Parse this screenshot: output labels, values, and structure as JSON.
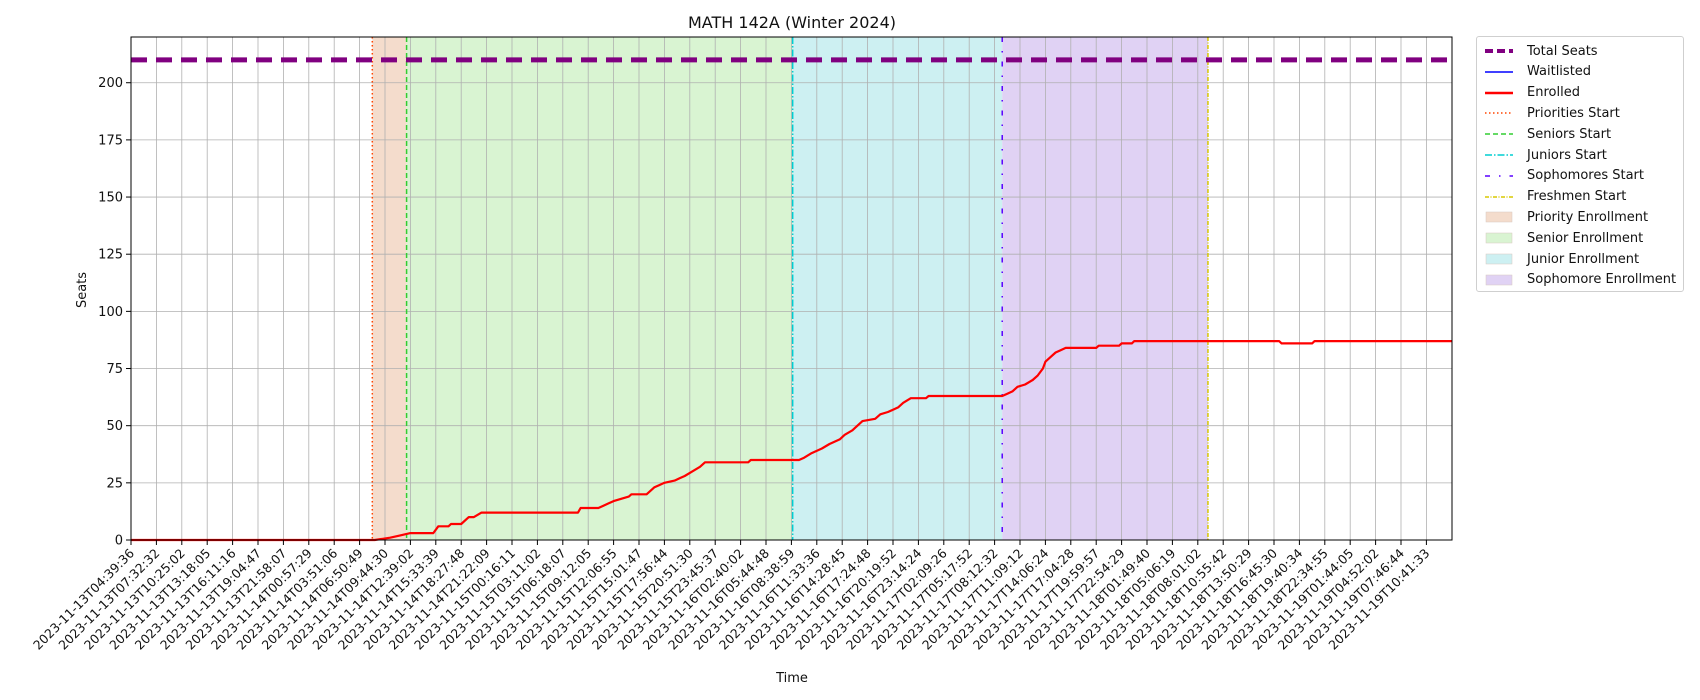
{
  "chart_data": {
    "type": "line",
    "title": "MATH 142A (Winter 2024)",
    "xlabel": "Time",
    "ylabel": "Seats",
    "ylim": [
      0,
      220
    ],
    "yticks": [
      0,
      25,
      50,
      75,
      100,
      125,
      150,
      175,
      200
    ],
    "grid": true,
    "legend_position": "outside-right-top",
    "x_tick_labels": [
      "2023-11-13T04:39:36",
      "2023-11-13T07:32:32",
      "2023-11-13T10:25:02",
      "2023-11-13T13:18:05",
      "2023-11-13T16:11:16",
      "2023-11-13T19:04:47",
      "2023-11-13T21:58:07",
      "2023-11-14T00:57:29",
      "2023-11-14T03:51:06",
      "2023-11-14T06:50:49",
      "2023-11-14T09:44:30",
      "2023-11-14T12:39:02",
      "2023-11-14T15:33:39",
      "2023-11-14T18:27:48",
      "2023-11-14T21:22:09",
      "2023-11-15T00:16:11",
      "2023-11-15T03:11:02",
      "2023-11-15T06:18:07",
      "2023-11-15T09:12:05",
      "2023-11-15T12:06:55",
      "2023-11-15T15:01:47",
      "2023-11-15T17:56:44",
      "2023-11-15T20:51:30",
      "2023-11-15T23:45:37",
      "2023-11-16T02:40:02",
      "2023-11-16T05:44:48",
      "2023-11-16T08:38:59",
      "2023-11-16T11:33:36",
      "2023-11-16T14:28:45",
      "2023-11-16T17:24:48",
      "2023-11-16T20:19:52",
      "2023-11-16T23:14:24",
      "2023-11-17T02:09:26",
      "2023-11-17T05:17:52",
      "2023-11-17T08:12:32",
      "2023-11-17T11:09:12",
      "2023-11-17T14:06:24",
      "2023-11-17T17:04:28",
      "2023-11-17T19:59:57",
      "2023-11-17T22:54:29",
      "2023-11-18T01:49:40",
      "2023-11-18T05:06:19",
      "2023-11-18T08:01:02",
      "2023-11-18T10:55:42",
      "2023-11-18T13:50:29",
      "2023-11-18T16:45:30",
      "2023-11-18T19:40:34",
      "2023-11-18T22:34:55",
      "2023-11-19T01:44:05",
      "2023-11-19T04:52:02",
      "2023-11-19T07:46:44",
      "2023-11-19T10:41:33"
    ],
    "total_seats": 210,
    "series": [
      {
        "name": "Total Seats",
        "color": "#800080",
        "style": "dashed-thick",
        "y": 210
      },
      {
        "name": "Waitlisted",
        "color": "#0000ff",
        "style": "solid",
        "values": []
      },
      {
        "name": "Enrolled",
        "color": "#ff0000",
        "style": "solid",
        "points": [
          [
            0,
            0
          ],
          [
            9.6,
            0
          ],
          [
            10.2,
            1
          ],
          [
            10.6,
            2
          ],
          [
            11.0,
            3
          ],
          [
            11.9,
            3
          ],
          [
            12.1,
            6
          ],
          [
            12.5,
            6
          ],
          [
            12.6,
            7
          ],
          [
            13.0,
            7
          ],
          [
            13.3,
            10
          ],
          [
            13.5,
            10
          ],
          [
            13.8,
            12
          ],
          [
            14.2,
            12
          ],
          [
            17.6,
            12
          ],
          [
            17.7,
            14
          ],
          [
            18.4,
            14
          ],
          [
            18.6,
            15
          ],
          [
            18.8,
            16
          ],
          [
            19.0,
            17
          ],
          [
            19.3,
            18
          ],
          [
            19.6,
            19
          ],
          [
            19.7,
            20
          ],
          [
            20.3,
            20
          ],
          [
            20.6,
            23
          ],
          [
            20.8,
            24
          ],
          [
            21.0,
            25
          ],
          [
            21.4,
            26
          ],
          [
            21.6,
            27
          ],
          [
            21.8,
            28
          ],
          [
            22.1,
            30
          ],
          [
            22.4,
            32
          ],
          [
            22.6,
            34
          ],
          [
            24.3,
            34
          ],
          [
            24.4,
            35
          ],
          [
            26.3,
            35
          ],
          [
            26.5,
            36
          ],
          [
            26.8,
            38
          ],
          [
            27.2,
            40
          ],
          [
            27.5,
            42
          ],
          [
            27.9,
            44
          ],
          [
            28.1,
            46
          ],
          [
            28.4,
            48
          ],
          [
            28.6,
            50
          ],
          [
            28.8,
            52
          ],
          [
            29.3,
            53
          ],
          [
            29.5,
            55
          ],
          [
            29.8,
            56
          ],
          [
            30.0,
            57
          ],
          [
            30.2,
            58
          ],
          [
            30.4,
            60
          ],
          [
            30.7,
            62
          ],
          [
            31.3,
            62
          ],
          [
            31.4,
            63
          ],
          [
            34.3,
            63
          ],
          [
            34.5,
            64
          ],
          [
            34.7,
            65
          ],
          [
            34.9,
            67
          ],
          [
            35.2,
            68
          ],
          [
            35.5,
            70
          ],
          [
            35.7,
            72
          ],
          [
            35.9,
            75
          ],
          [
            36.0,
            78
          ],
          [
            36.2,
            80
          ],
          [
            36.4,
            82
          ],
          [
            36.6,
            83
          ],
          [
            36.8,
            84
          ],
          [
            38.0,
            84
          ],
          [
            38.1,
            85
          ],
          [
            38.9,
            85
          ],
          [
            39.0,
            86
          ],
          [
            39.4,
            86
          ],
          [
            39.5,
            87
          ],
          [
            45.2,
            87
          ],
          [
            45.3,
            86
          ],
          [
            46.5,
            86
          ],
          [
            46.6,
            87
          ],
          [
            52.0,
            87
          ]
        ]
      }
    ],
    "phases": [
      {
        "name": "Priority Enrollment",
        "start_label": "Priorities Start",
        "start": 9.5,
        "end": 10.85,
        "fill": "#f4dccc",
        "line_color": "#ff4500",
        "line_style": "dotted"
      },
      {
        "name": "Senior Enrollment",
        "start_label": "Seniors Start",
        "start": 10.85,
        "end": 26.05,
        "fill": "#d9f4d2",
        "line_color": "#32cd32",
        "line_style": "dashed"
      },
      {
        "name": "Junior Enrollment",
        "start_label": "Juniors Start",
        "start": 26.05,
        "end": 34.3,
        "fill": "#cdf0f2",
        "line_color": "#00ced1",
        "line_style": "dashdot"
      },
      {
        "name": "Sophomore Enrollment",
        "start_label": "Sophomores Start",
        "start": 34.3,
        "end": 42.4,
        "fill": "#e0d2f4",
        "line_color": "#5a00ff",
        "line_style": "dashdotsparse"
      },
      {
        "name": null,
        "start_label": "Freshmen Start",
        "start": 42.4,
        "end": null,
        "fill": null,
        "line_color": "#d9c800",
        "line_style": "dashdotdense"
      }
    ]
  },
  "legend": {
    "items": [
      {
        "label": "Total Seats",
        "kind": "line",
        "color": "#800080",
        "dash": "8,4",
        "width": 4
      },
      {
        "label": "Waitlisted",
        "kind": "line",
        "color": "#0000ff",
        "dash": "",
        "width": 1.5
      },
      {
        "label": "Enrolled",
        "kind": "line",
        "color": "#ff0000",
        "dash": "",
        "width": 2.5
      },
      {
        "label": "Priorities Start",
        "kind": "line",
        "color": "#ff4500",
        "dash": "1.5,2.5",
        "width": 1.5
      },
      {
        "label": "Seniors Start",
        "kind": "line",
        "color": "#32cd32",
        "dash": "5,3",
        "width": 1.5
      },
      {
        "label": "Juniors Start",
        "kind": "line",
        "color": "#00ced1",
        "dash": "7,2,1.5,2",
        "width": 1.5
      },
      {
        "label": "Sophomores Start",
        "kind": "line",
        "color": "#5a00ff",
        "dash": "5,9,1.5,9",
        "width": 1.5
      },
      {
        "label": "Freshmen Start",
        "kind": "line",
        "color": "#d9c800",
        "dash": "4,1.5,1,1.5",
        "width": 1.5
      },
      {
        "label": "Priority Enrollment",
        "kind": "patch",
        "color": "#f4dccc"
      },
      {
        "label": "Senior Enrollment",
        "kind": "patch",
        "color": "#d9f4d2"
      },
      {
        "label": "Junior Enrollment",
        "kind": "patch",
        "color": "#cdf0f2"
      },
      {
        "label": "Sophomore Enrollment",
        "kind": "patch",
        "color": "#e0d2f4"
      }
    ]
  }
}
